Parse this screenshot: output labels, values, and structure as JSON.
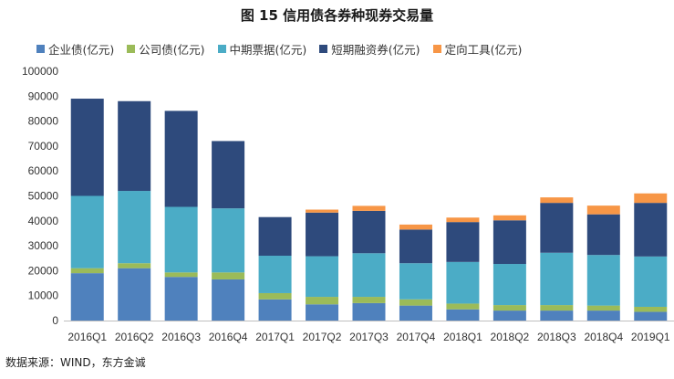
{
  "chart_data": {
    "type": "bar",
    "stacked": true,
    "title": "图 15   信用债各券种现券交易量",
    "categories": [
      "2016Q1",
      "2016Q2",
      "2016Q3",
      "2016Q4",
      "2017Q1",
      "2017Q2",
      "2017Q3",
      "2017Q4",
      "2018Q1",
      "2018Q2",
      "2018Q3",
      "2018Q4",
      "2019Q1"
    ],
    "series": [
      {
        "name": "企业债(亿元)",
        "color": "#4f81bd",
        "values": [
          19000,
          21000,
          17500,
          16500,
          8500,
          6500,
          7000,
          6000,
          4500,
          4000,
          4000,
          4000,
          3500
        ]
      },
      {
        "name": "公司债(亿元)",
        "color": "#9bbb59",
        "values": [
          2000,
          2000,
          1800,
          2800,
          2500,
          3000,
          2500,
          2500,
          2300,
          2200,
          2200,
          2000,
          2000
        ]
      },
      {
        "name": "中期票据(亿元)",
        "color": "#4bacc6",
        "values": [
          29000,
          29000,
          26300,
          25700,
          15000,
          16300,
          17500,
          14500,
          16700,
          16500,
          21000,
          20300,
          20200
        ]
      },
      {
        "name": "短期融资券(亿元)",
        "color": "#2e4a7c",
        "values": [
          39000,
          36000,
          38500,
          27000,
          15500,
          17500,
          17000,
          13500,
          16000,
          17500,
          20000,
          16300,
          21500
        ]
      },
      {
        "name": "定向工具(亿元)",
        "color": "#f79646",
        "values": [
          0,
          0,
          0,
          0,
          0,
          1200,
          2000,
          2000,
          1800,
          2000,
          2200,
          3500,
          3800
        ]
      }
    ],
    "ylim": [
      0,
      100000
    ],
    "yticks": [
      "0",
      "10000",
      "20000",
      "30000",
      "40000",
      "50000",
      "60000",
      "70000",
      "80000",
      "90000",
      "100000"
    ],
    "xlabel": "",
    "ylabel": "",
    "grid": false,
    "legend": "top"
  },
  "source": "数据来源：WIND，东方金诚"
}
